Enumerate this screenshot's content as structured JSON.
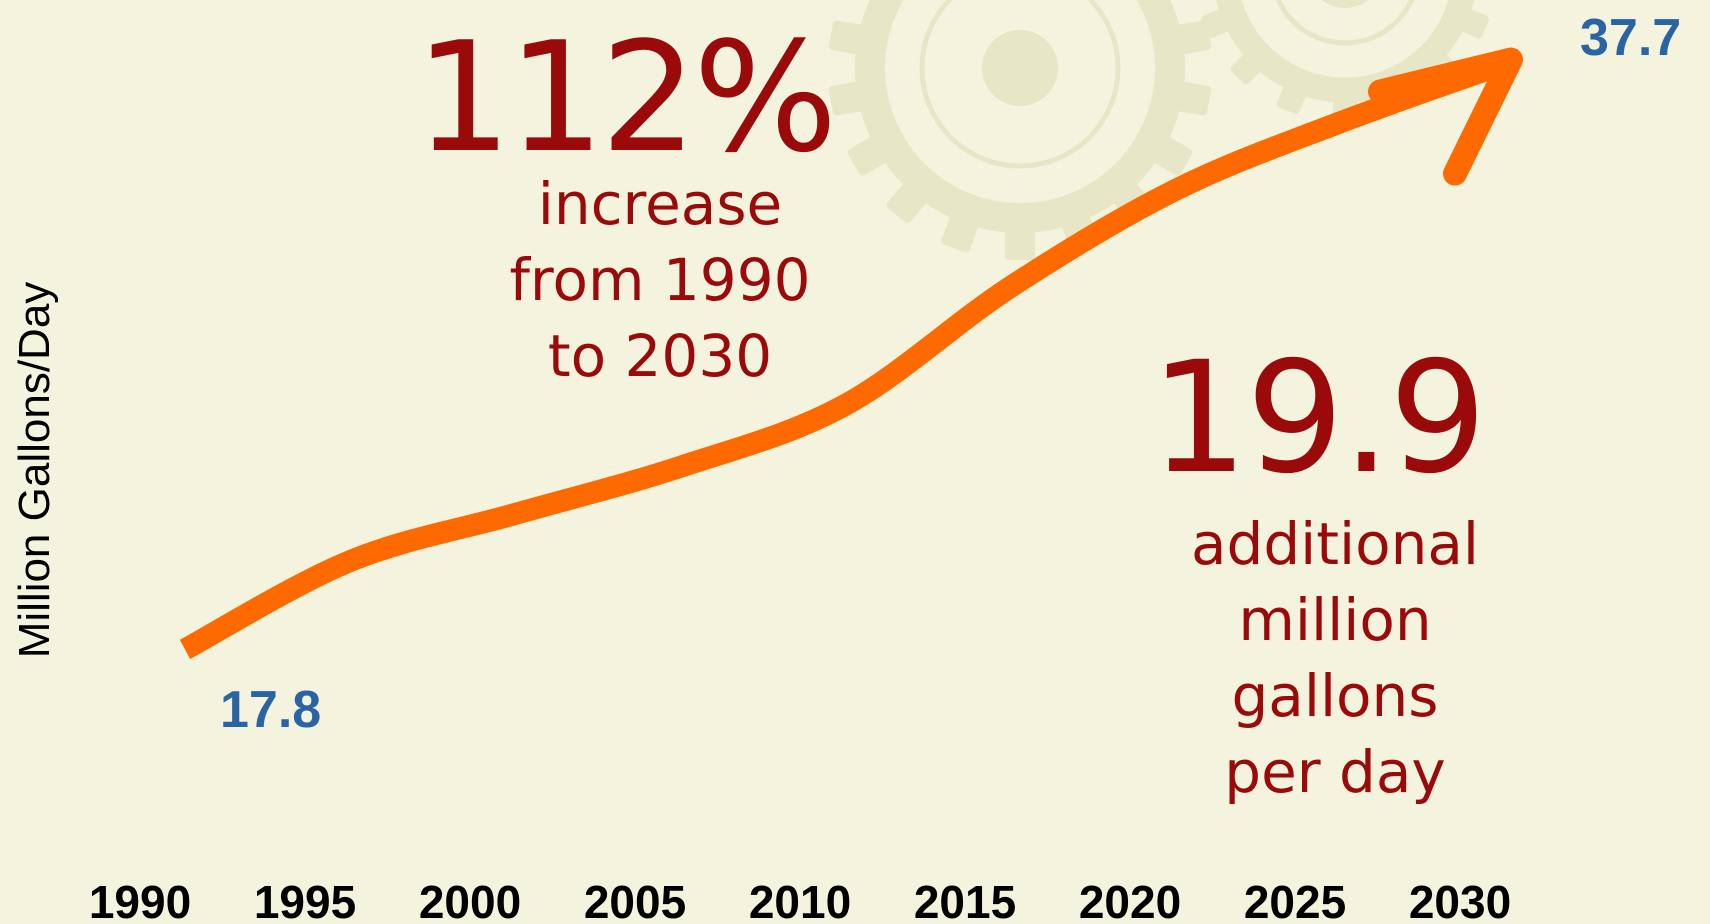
{
  "colors": {
    "background": "#f4f3dd",
    "line": "#ff6a00",
    "callout": "#9b0a0a",
    "value_label": "#2a64a4",
    "gear": "#e7e6c6"
  },
  "chart_data": {
    "type": "line",
    "title": "",
    "xlabel": "",
    "ylabel": "Million Gallons/Day",
    "categories": [
      "1990",
      "1995",
      "2000",
      "2005",
      "2010",
      "2015",
      "2020",
      "2025",
      "2030"
    ],
    "x": [
      1990,
      1995,
      2000,
      2005,
      2010,
      2015,
      2020,
      2025,
      2030
    ],
    "values": [
      17.8,
      20.8,
      22.4,
      24.0,
      26.1,
      30.1,
      33.4,
      35.7,
      37.7
    ],
    "ylim": [
      17.0,
      38.5
    ],
    "grid": false,
    "legend": "none",
    "start_label": "17.8",
    "end_label": "37.7",
    "annotations": {
      "percent_big": "112%",
      "percent_text": [
        "increase",
        "from 1990",
        "to 2030"
      ],
      "additional_big": "19.9",
      "additional_text": [
        "additional",
        "million",
        "gallons",
        "per day"
      ]
    }
  }
}
